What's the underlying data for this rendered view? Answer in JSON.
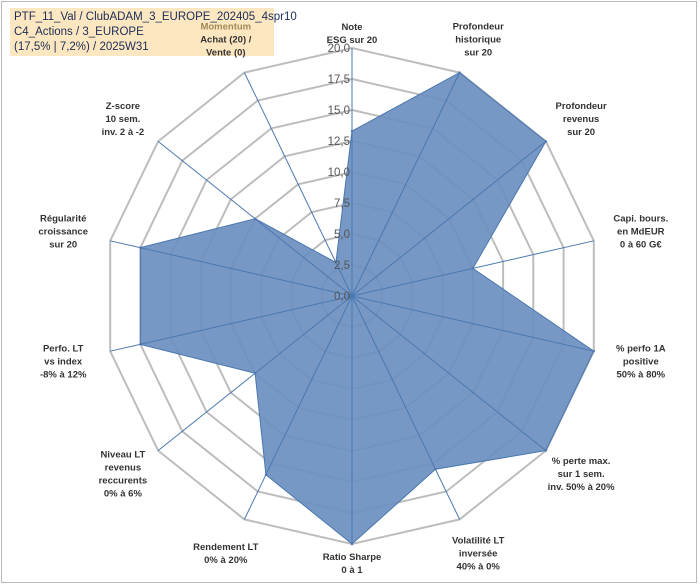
{
  "title_lines": [
    "PTF_11_Val / ClubADAM_3_EUROPE_202405_4spr10",
    "C4_Actions / 3_EUROPE",
    "(17,5% | 7,2%) / 2025W31"
  ],
  "colors": {
    "fill": "#6b8fbf",
    "stroke": "#4a78b0",
    "spoke": "#4a78b0",
    "grid": "#bdbdbd",
    "title_bg": "#fde7c0",
    "title_text": "#1b2d57",
    "momentum_label": "#9c8a5a"
  },
  "chart_data": {
    "type": "radar",
    "ylim": [
      0,
      20
    ],
    "ticks": [
      "0,0",
      "2,5",
      "5,0",
      "7,5",
      "10,0",
      "12,5",
      "15,0",
      "17,5",
      "20,0"
    ],
    "tick_values": [
      0,
      2.5,
      5,
      7.5,
      10,
      12.5,
      15,
      17.5,
      20
    ],
    "categories": [
      {
        "lines": [
          "Note",
          "ESG sur 20"
        ]
      },
      {
        "lines": [
          "Profondeur",
          "historique",
          "sur 20"
        ]
      },
      {
        "lines": [
          "Profondeur",
          "revenus",
          "sur 20"
        ]
      },
      {
        "lines": [
          "Capi. bours.",
          "en MdEUR",
          "0 à 60 G€"
        ]
      },
      {
        "lines": [
          "% perfo 1A",
          "positive",
          "50% à 80%"
        ]
      },
      {
        "lines": [
          "% perte max.",
          "sur 1 sem.",
          "inv. 50% à 20%"
        ]
      },
      {
        "lines": [
          "Volatilité LT",
          "inversée",
          "40% à 0%"
        ]
      },
      {
        "lines": [
          "Ratio Sharpe",
          "0 à 1"
        ]
      },
      {
        "lines": [
          "Rendement LT",
          "0% à 20%"
        ]
      },
      {
        "lines": [
          "Niveau LT",
          "revenus",
          "reccurents",
          "0% à 6%"
        ]
      },
      {
        "lines": [
          "Perfo. LT",
          "vs index",
          "-8% à 12%"
        ]
      },
      {
        "lines": [
          "Régularité",
          "croissance",
          "sur 20"
        ]
      },
      {
        "lines": [
          "Z-score",
          "10 sem.",
          "inv. 2 à -2"
        ]
      },
      {
        "lines": [
          "Momentum",
          "Achat (20) /",
          "Vente (0)"
        ],
        "first_line_color": "momentum_label"
      }
    ],
    "values": [
      13.3,
      20,
      20,
      10,
      20,
      20,
      15.5,
      20,
      16,
      10,
      17.5,
      17.5,
      10,
      3
    ]
  }
}
